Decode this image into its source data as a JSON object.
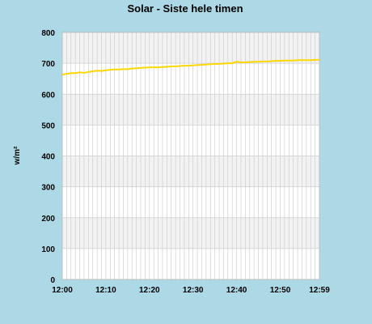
{
  "chart_data": {
    "type": "line",
    "title": "Solar - Siste hele timen",
    "ylabel": "w/m²",
    "xlabel": "",
    "ylim": [
      0,
      800
    ],
    "y_ticks": [
      "0",
      "100",
      "200",
      "300",
      "400",
      "500",
      "600",
      "700",
      "800"
    ],
    "x_range": [
      0,
      59
    ],
    "x_ticks": [
      {
        "x": 0,
        "label": "12:00"
      },
      {
        "x": 10,
        "label": "12:10"
      },
      {
        "x": 20,
        "label": "12:20"
      },
      {
        "x": 30,
        "label": "12:30"
      },
      {
        "x": 40,
        "label": "12:40"
      },
      {
        "x": 50,
        "label": "12:50"
      },
      {
        "x": 59,
        "label": "12:59"
      }
    ],
    "grid": true,
    "line_color": "#ffd700",
    "series": [
      {
        "values": [
          663,
          666,
          668,
          668,
          671,
          669,
          672,
          674,
          676,
          675,
          677,
          679,
          680,
          680,
          681,
          681,
          683,
          684,
          685,
          686,
          687,
          687,
          687,
          688,
          689,
          690,
          690,
          691,
          692,
          692,
          693,
          694,
          695,
          696,
          697,
          698,
          698,
          699,
          700,
          700,
          705,
          703,
          703,
          704,
          705,
          705,
          706,
          706,
          707,
          708,
          708,
          709,
          709,
          709,
          710,
          710,
          710,
          710,
          711,
          711
        ]
      }
    ]
  }
}
